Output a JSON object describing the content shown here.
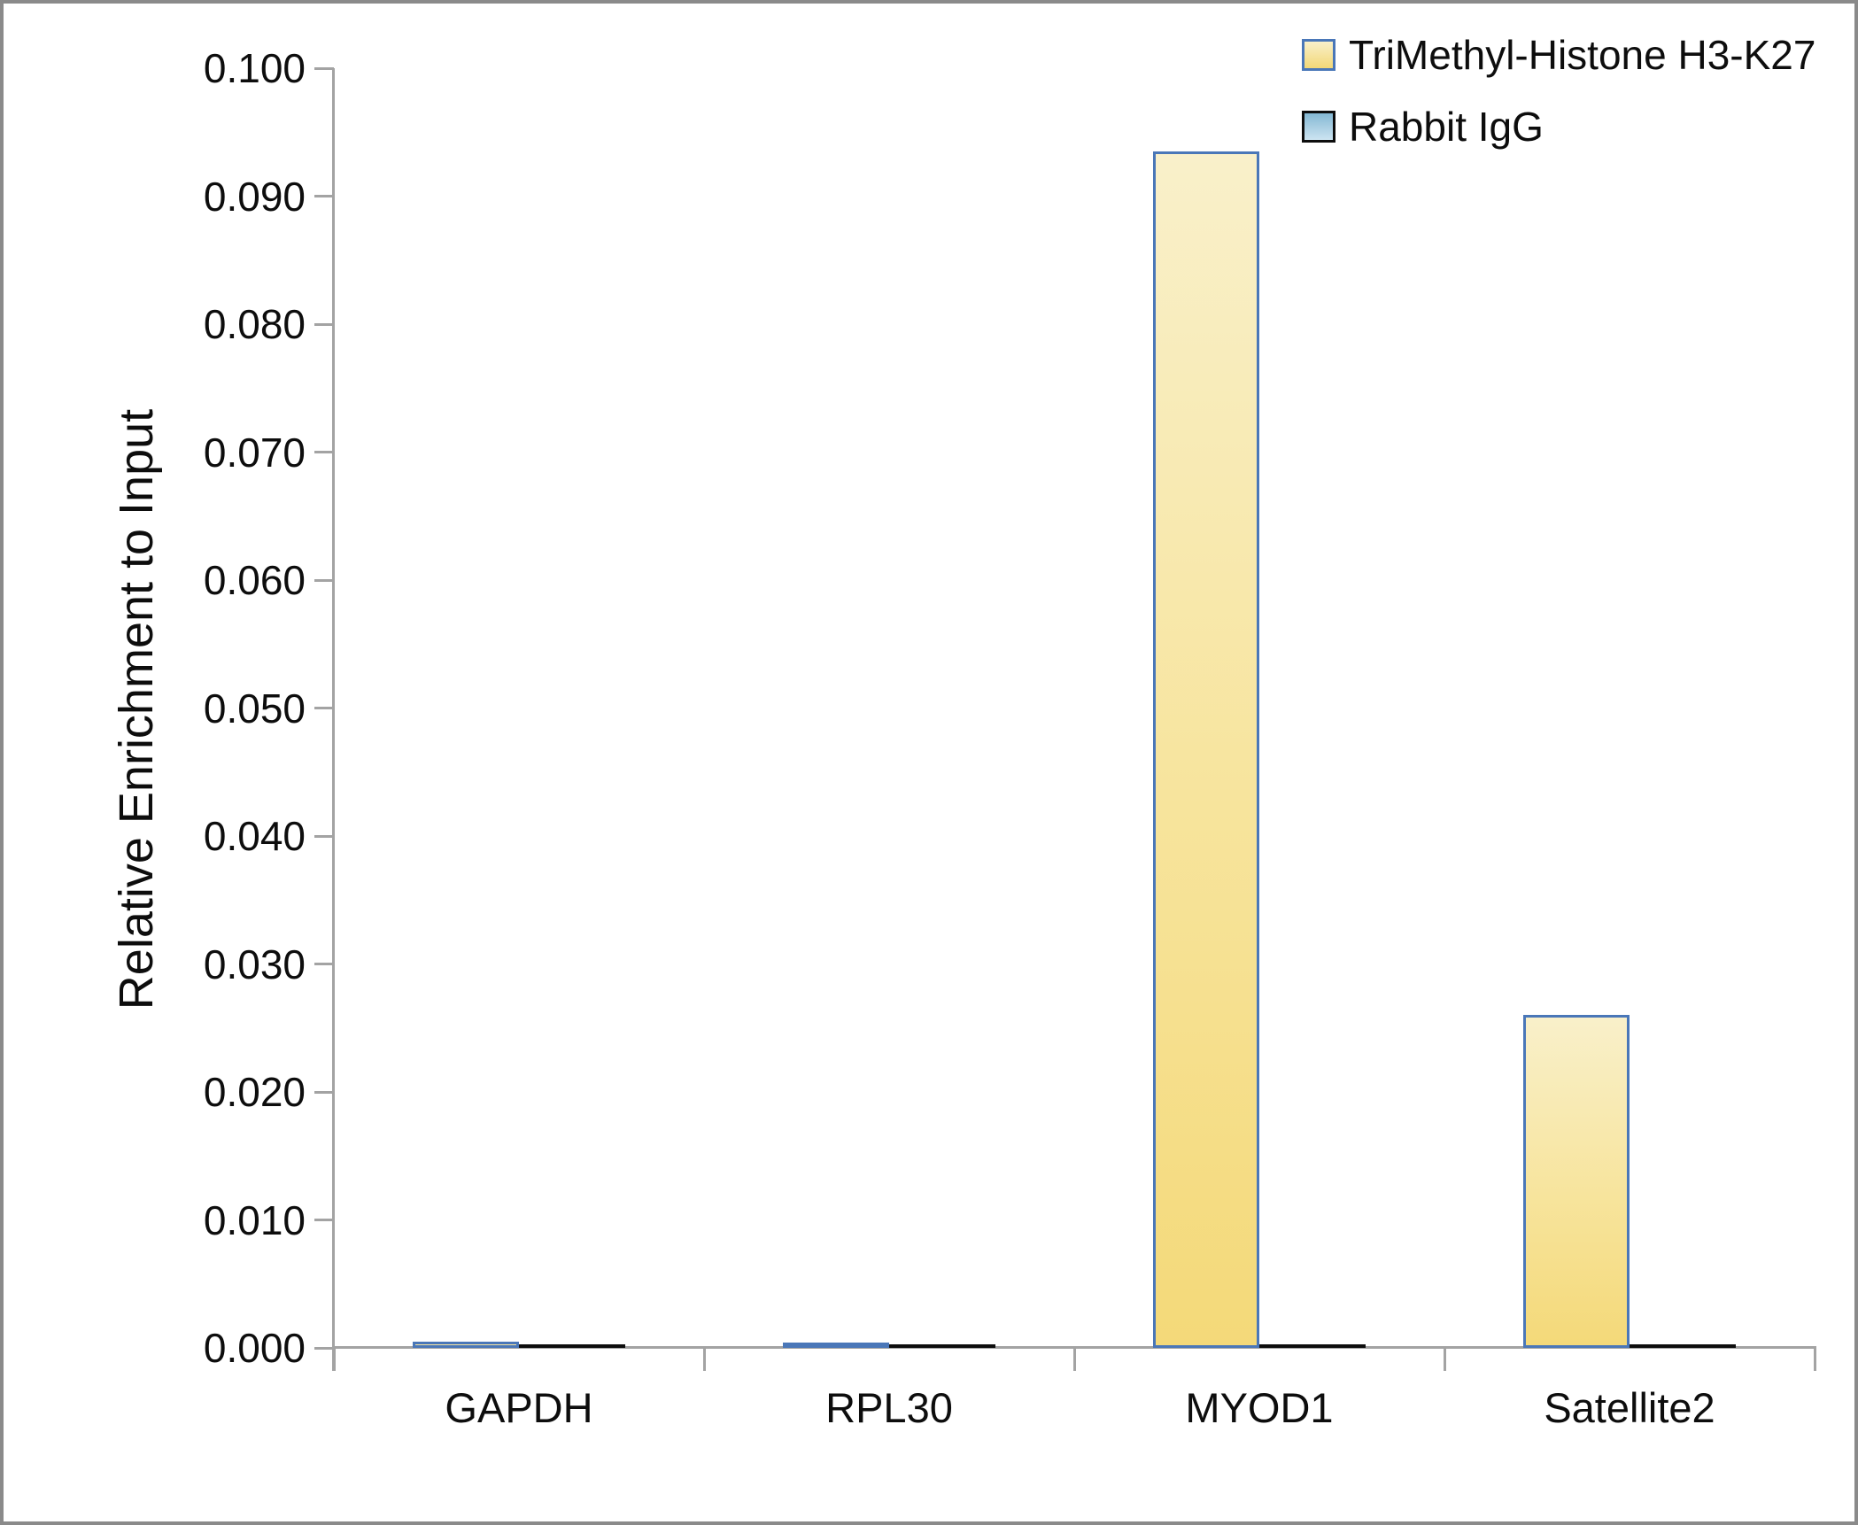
{
  "figure": {
    "y_axis_title": "Relative Enrichment to Input"
  },
  "legend": {
    "items": [
      {
        "label": "TriMethyl-Histone H3-K27",
        "swatch_fill_top": "#f9f0ca",
        "swatch_fill_bottom": "#f2d877",
        "swatch_border": "#4a77b8"
      },
      {
        "label": "Rabbit IgG",
        "swatch_fill_top": "#84b8d3",
        "swatch_fill_bottom": "#cde4f1",
        "swatch_border": "#0d0d0d"
      }
    ]
  },
  "chart_data": {
    "type": "bar",
    "categories": [
      "GAPDH",
      "RPL30",
      "MYOD1",
      "Satellite2"
    ],
    "series": [
      {
        "name": "TriMethyl-Histone H3-K27",
        "color_top": "#f9f0ca",
        "color_bottom": "#f4d979",
        "border": "#4a77b8",
        "values": [
          0.0005,
          0.0004,
          0.0935,
          0.026
        ]
      },
      {
        "name": "Rabbit IgG",
        "color_top": "#84b8d3",
        "color_bottom": "#cde4f1",
        "border": "#0d0d0d",
        "values": [
          0.0003,
          0.0003,
          0.0003,
          0.0003
        ]
      }
    ],
    "title": "",
    "xlabel": "",
    "ylabel": "Relative Enrichment to Input",
    "ylim": [
      0,
      0.1
    ],
    "ytick_step": 0.01,
    "ytick_labels": [
      "0.000",
      "0.010",
      "0.020",
      "0.030",
      "0.040",
      "0.050",
      "0.060",
      "0.070",
      "0.080",
      "0.090",
      "0.100"
    ],
    "grid": false,
    "legend_position": "top-right"
  },
  "colors": {
    "axis": "#a3a3a3",
    "text": "#0d0d0d",
    "frame_border": "#8a8a8a",
    "background": "#ffffff"
  }
}
